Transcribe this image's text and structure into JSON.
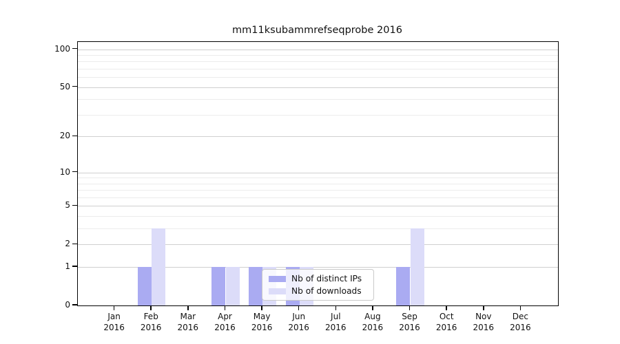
{
  "chart_data": {
    "type": "bar",
    "title": "mm11ksubammrefseqprobe 2016",
    "categories": [
      "Jan",
      "Feb",
      "Mar",
      "Apr",
      "May",
      "Jun",
      "Jul",
      "Aug",
      "Sep",
      "Oct",
      "Nov",
      "Dec"
    ],
    "x_tick_year": "2016",
    "series": [
      {
        "name": "Nb of distinct IPs",
        "color": "#aaabf2",
        "values": [
          0,
          1,
          0,
          1,
          1,
          1,
          0,
          0,
          1,
          0,
          0,
          0
        ]
      },
      {
        "name": "Nb of downloads",
        "color": "#dcdcf9",
        "values": [
          0,
          3,
          0,
          1,
          1,
          1,
          0,
          0,
          3,
          0,
          0,
          0
        ]
      }
    ],
    "yscale": "log10(1+y)",
    "ylim": [
      0,
      114
    ],
    "yticks": [
      0,
      1,
      2,
      5,
      10,
      20,
      50,
      100
    ],
    "minor_gridlines": [
      3,
      4,
      6,
      7,
      8,
      9,
      30,
      40,
      60,
      70,
      80,
      90
    ],
    "grid": "horizontal",
    "legend_position": "bottom-center",
    "colors": {
      "major_grid": "#cfcfcf",
      "minor_grid": "#ececec",
      "spine": "#000000",
      "text": "#111111"
    }
  }
}
